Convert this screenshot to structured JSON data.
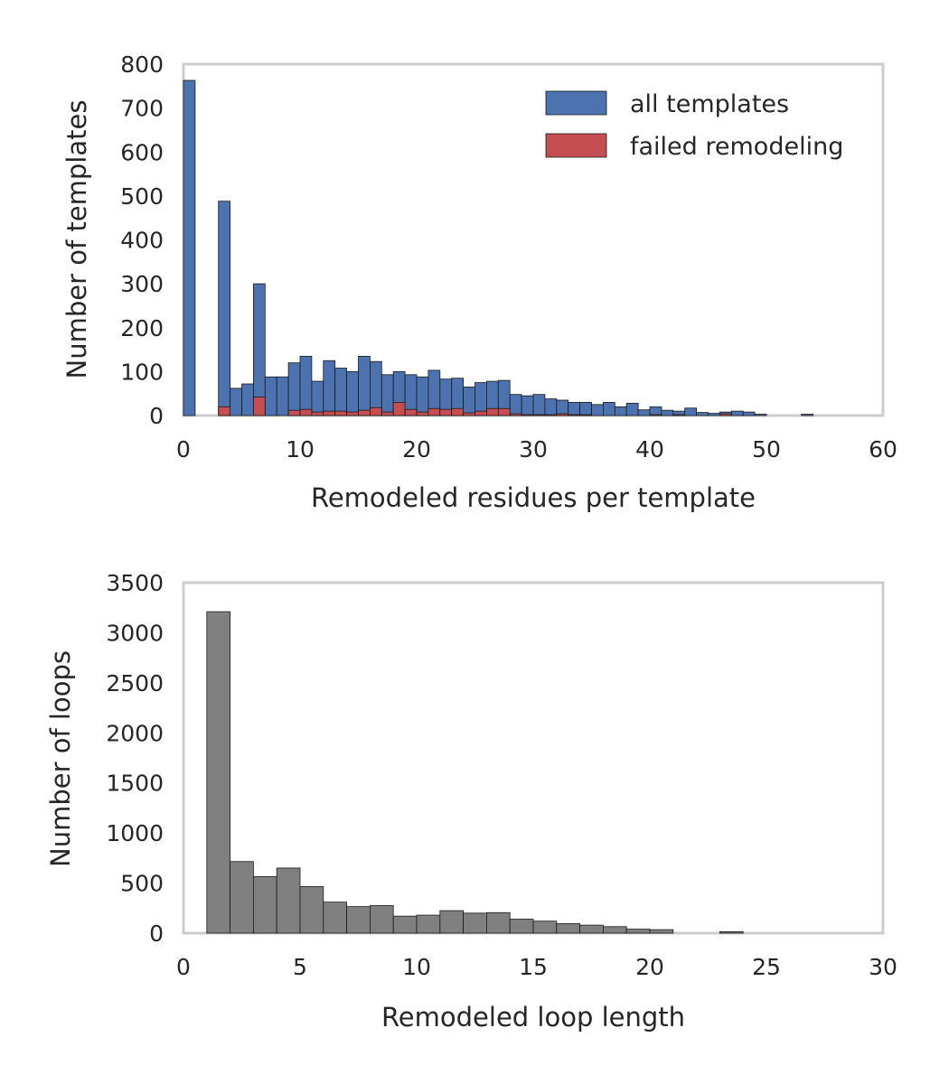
{
  "chart_data": [
    {
      "type": "bar",
      "subtype": "histogram-overlay",
      "title": "",
      "xlabel": "Remodeled residues per template",
      "ylabel": "Number of templates",
      "xlim": [
        0,
        60
      ],
      "ylim": [
        0,
        800
      ],
      "xticks": [
        "0",
        "10",
        "20",
        "30",
        "40",
        "50",
        "60"
      ],
      "yticks": [
        "0",
        "100",
        "200",
        "300",
        "400",
        "500",
        "600",
        "700",
        "800"
      ],
      "grid": false,
      "legend": "top-right",
      "bin_width": 1,
      "series": [
        {
          "name": "all templates",
          "color": "#4c72b0",
          "x": [
            0,
            1,
            2,
            3,
            4,
            5,
            6,
            7,
            8,
            9,
            10,
            11,
            12,
            13,
            14,
            15,
            16,
            17,
            18,
            19,
            20,
            21,
            22,
            23,
            24,
            25,
            26,
            27,
            28,
            29,
            30,
            31,
            32,
            33,
            34,
            35,
            36,
            37,
            38,
            39,
            40,
            41,
            42,
            43,
            44,
            45,
            46,
            47,
            48,
            49,
            50,
            51,
            52,
            53,
            54,
            55,
            56,
            57,
            58,
            59
          ],
          "values": [
            763,
            0,
            0,
            488,
            62,
            72,
            300,
            88,
            88,
            120,
            135,
            78,
            125,
            108,
            100,
            135,
            123,
            93,
            100,
            93,
            88,
            103,
            83,
            85,
            65,
            75,
            78,
            80,
            48,
            45,
            48,
            38,
            35,
            30,
            30,
            25,
            30,
            20,
            28,
            13,
            20,
            12,
            10,
            17,
            7,
            5,
            8,
            10,
            8,
            3,
            0,
            0,
            0,
            3,
            0,
            0,
            0,
            0,
            0,
            0
          ]
        },
        {
          "name": "failed remodeling",
          "color": "#c44e52",
          "x": [
            0,
            1,
            2,
            3,
            4,
            5,
            6,
            7,
            8,
            9,
            10,
            11,
            12,
            13,
            14,
            15,
            16,
            17,
            18,
            19,
            20,
            21,
            22,
            23,
            24,
            25,
            26,
            27,
            28,
            29,
            30,
            31,
            32,
            33,
            34,
            35,
            36,
            37,
            38,
            39,
            40,
            41,
            42,
            43,
            44,
            45,
            46,
            47,
            48,
            49,
            50,
            51,
            52,
            53,
            54,
            55,
            56,
            57,
            58,
            59
          ],
          "values": [
            0,
            0,
            0,
            20,
            0,
            0,
            42,
            0,
            0,
            12,
            14,
            8,
            10,
            10,
            8,
            12,
            18,
            8,
            30,
            14,
            8,
            16,
            14,
            16,
            6,
            10,
            16,
            16,
            4,
            2,
            2,
            2,
            4,
            2,
            2,
            0,
            0,
            0,
            0,
            0,
            2,
            0,
            2,
            0,
            0,
            0,
            4,
            0,
            0,
            0,
            0,
            0,
            0,
            0,
            0,
            0,
            0,
            0,
            0,
            0
          ]
        }
      ]
    },
    {
      "type": "bar",
      "subtype": "histogram",
      "title": "",
      "xlabel": "Remodeled loop length",
      "ylabel": "Number of loops",
      "xlim": [
        0,
        30
      ],
      "ylim": [
        0,
        3500
      ],
      "xticks": [
        "0",
        "5",
        "10",
        "15",
        "20",
        "25",
        "30"
      ],
      "yticks": [
        "0",
        "500",
        "1000",
        "1500",
        "2000",
        "2500",
        "3000",
        "3500"
      ],
      "grid": false,
      "bin_width": 1,
      "series": [
        {
          "color": "#808080",
          "x": [
            1,
            2,
            3,
            4,
            5,
            6,
            7,
            8,
            9,
            10,
            11,
            12,
            13,
            14,
            15,
            16,
            17,
            18,
            19,
            20,
            21,
            22,
            23,
            24,
            25,
            26,
            27,
            28,
            29
          ],
          "values": [
            3210,
            715,
            565,
            650,
            465,
            310,
            265,
            275,
            170,
            180,
            225,
            200,
            205,
            140,
            120,
            95,
            80,
            65,
            40,
            35,
            0,
            0,
            15,
            0,
            0,
            0,
            0,
            0,
            0
          ]
        }
      ]
    }
  ]
}
